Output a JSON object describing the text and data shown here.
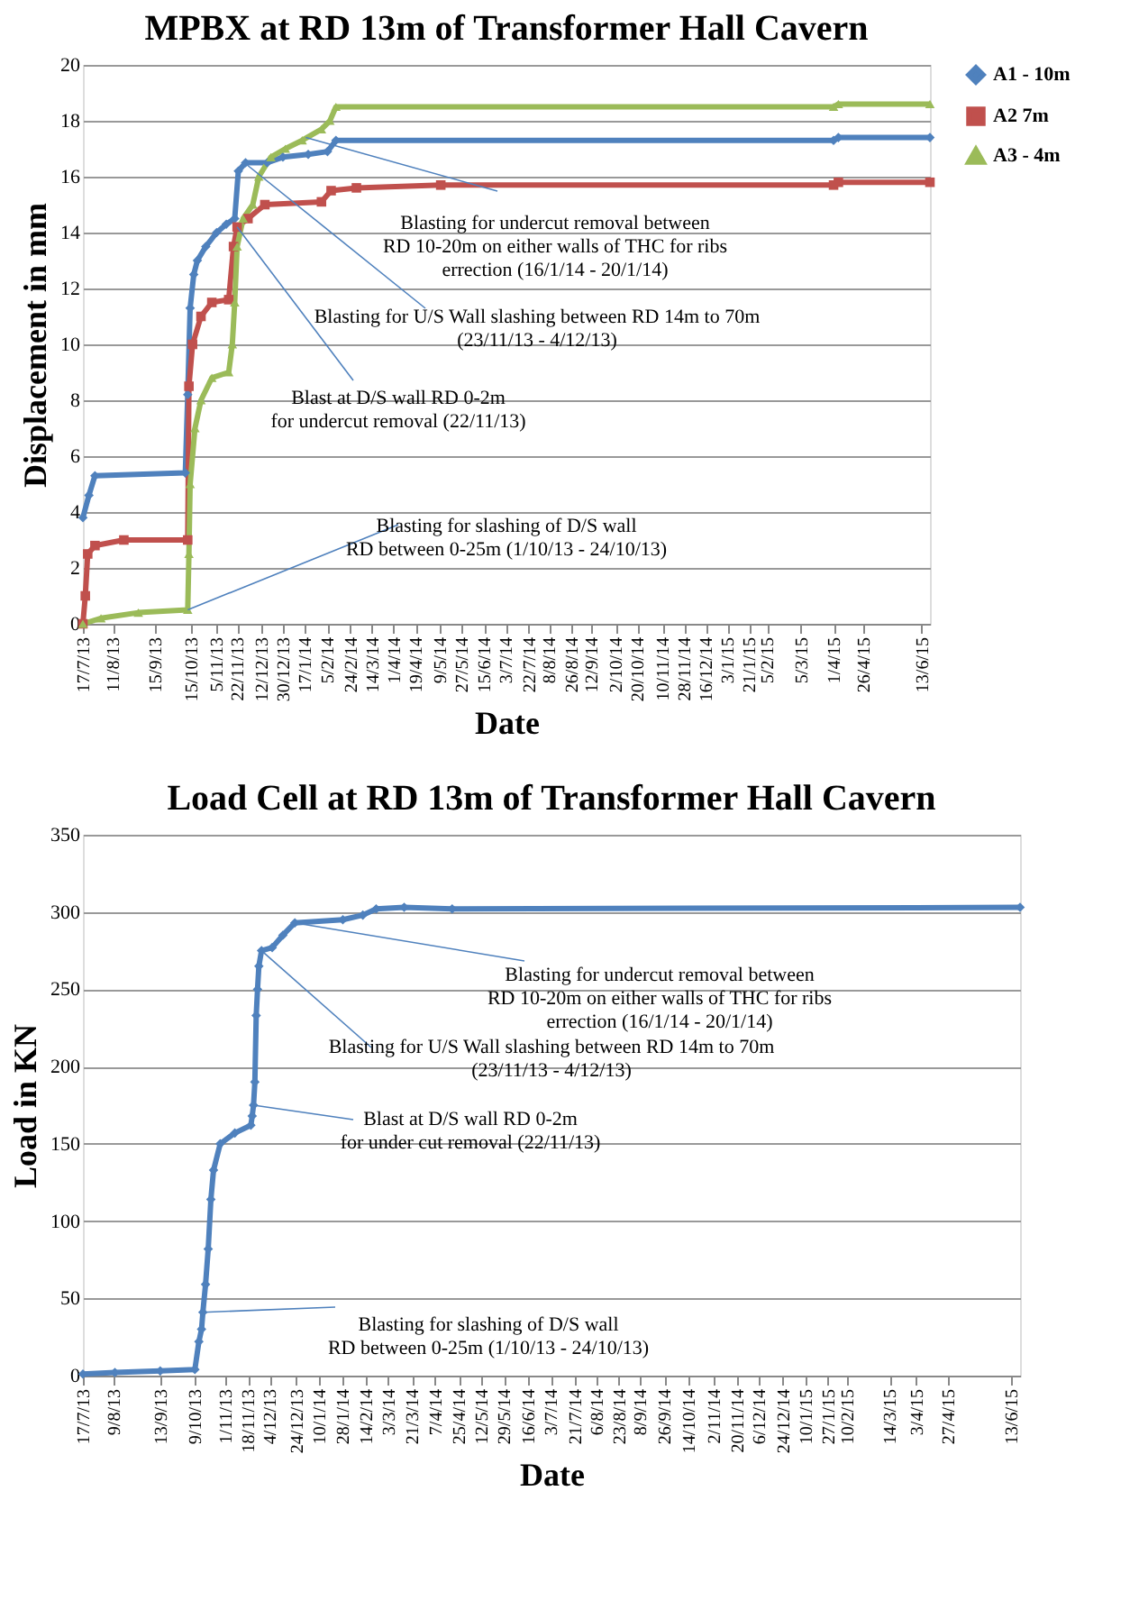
{
  "chart_data": [
    {
      "type": "line",
      "title": "MPBX at RD 13m  of Transformer Hall Cavern",
      "xlabel": "Date",
      "ylabel": "Displacement in mm",
      "xlim": [
        "2013-07-17",
        "2015-06-20"
      ],
      "ylim": [
        0,
        20
      ],
      "yticks": [
        0,
        2,
        4,
        6,
        8,
        10,
        12,
        14,
        16,
        18,
        20
      ],
      "xticks": [
        {
          "value": "2013-07-17",
          "label": "17/7/13"
        },
        {
          "value": "2013-08-11",
          "label": "11/8/13"
        },
        {
          "value": "2013-09-15",
          "label": "15/9/13"
        },
        {
          "value": "2013-10-15",
          "label": "15/10/13"
        },
        {
          "value": "2013-11-05",
          "label": "5/11/13"
        },
        {
          "value": "2013-11-22",
          "label": "22/11/13"
        },
        {
          "value": "2013-12-12",
          "label": "12/12/13"
        },
        {
          "value": "2013-12-30",
          "label": "30/12/13"
        },
        {
          "value": "2014-01-17",
          "label": "17/1/14"
        },
        {
          "value": "2014-02-05",
          "label": "5/2/14"
        },
        {
          "value": "2014-02-24",
          "label": "24/2/14"
        },
        {
          "value": "2014-03-14",
          "label": "14/3/14"
        },
        {
          "value": "2014-04-01",
          "label": "1/4/14"
        },
        {
          "value": "2014-04-19",
          "label": "19/4/14"
        },
        {
          "value": "2014-05-09",
          "label": "9/5/14"
        },
        {
          "value": "2014-05-27",
          "label": "27/5/14"
        },
        {
          "value": "2014-06-15",
          "label": "15/6/14"
        },
        {
          "value": "2014-07-03",
          "label": "3/7/14"
        },
        {
          "value": "2014-07-22",
          "label": "22/7/14"
        },
        {
          "value": "2014-08-08",
          "label": "8/8/14"
        },
        {
          "value": "2014-08-26",
          "label": "26/8/14"
        },
        {
          "value": "2014-09-12",
          "label": "12/9/14"
        },
        {
          "value": "2014-10-02",
          "label": "2/10/14"
        },
        {
          "value": "2014-10-20",
          "label": "20/10/14"
        },
        {
          "value": "2014-11-10",
          "label": "10/11/14"
        },
        {
          "value": "2014-11-28",
          "label": "28/11/14"
        },
        {
          "value": "2014-12-16",
          "label": "16/12/14"
        },
        {
          "value": "2015-01-03",
          "label": "3/1/15"
        },
        {
          "value": "2015-01-21",
          "label": "21/1/15"
        },
        {
          "value": "2015-02-05",
          "label": "5/2/15"
        },
        {
          "value": "2015-03-05",
          "label": "5/3/15"
        },
        {
          "value": "2015-04-01",
          "label": "1/4/15"
        },
        {
          "value": "2015-04-26",
          "label": "26/4/15"
        },
        {
          "value": "2015-06-13",
          "label": "13/6/15"
        }
      ],
      "grid": "y",
      "legend": "right",
      "line_style": "solid",
      "series": [
        {
          "name": "A1 - 10m",
          "color": "#4f81bd",
          "marker": "diamond",
          "x": [
            "2013-07-17",
            "2013-07-22",
            "2013-07-27",
            "2013-10-10",
            "2013-10-12",
            "2013-10-14",
            "2013-10-17",
            "2013-10-20",
            "2013-10-27",
            "2013-11-05",
            "2013-11-13",
            "2013-11-20",
            "2013-11-23",
            "2013-11-29",
            "2013-12-17",
            "2013-12-30",
            "2014-01-20",
            "2014-02-05",
            "2014-02-12",
            "2015-04-01",
            "2015-04-05",
            "2015-06-20"
          ],
          "values": [
            3.8,
            4.6,
            5.3,
            5.4,
            8.2,
            11.3,
            12.5,
            13.0,
            13.5,
            14.0,
            14.3,
            14.5,
            16.2,
            16.5,
            16.5,
            16.7,
            16.8,
            16.9,
            17.3,
            17.3,
            17.4,
            17.4
          ]
        },
        {
          "name": "A2   7m",
          "color": "#c0504d",
          "marker": "square",
          "x": [
            "2013-07-17",
            "2013-07-19",
            "2013-07-21",
            "2013-07-27",
            "2013-08-20",
            "2013-10-12",
            "2013-10-13",
            "2013-10-16",
            "2013-10-23",
            "2013-11-01",
            "2013-11-15",
            "2013-11-19",
            "2013-11-22",
            "2013-12-01",
            "2013-12-15",
            "2014-01-31",
            "2014-02-08",
            "2014-03-01",
            "2014-05-10",
            "2015-04-01",
            "2015-04-05",
            "2015-06-20"
          ],
          "values": [
            0,
            1.0,
            2.5,
            2.8,
            3.0,
            3.0,
            8.5,
            10.0,
            11.0,
            11.5,
            11.6,
            13.5,
            14.2,
            14.5,
            15.0,
            15.1,
            15.5,
            15.6,
            15.7,
            15.7,
            15.8,
            15.8
          ]
        },
        {
          "name": "A3 - 4m",
          "color": "#9bbb59",
          "marker": "triangle",
          "x": [
            "2013-07-17",
            "2013-08-01",
            "2013-09-01",
            "2013-10-12",
            "2013-10-13",
            "2013-10-14",
            "2013-10-18",
            "2013-10-23",
            "2013-11-01",
            "2013-11-15",
            "2013-11-18",
            "2013-11-20",
            "2013-11-22",
            "2013-11-27",
            "2013-12-05",
            "2013-12-10",
            "2013-12-20",
            "2014-01-01",
            "2014-01-15",
            "2014-01-31",
            "2014-02-07",
            "2014-02-12",
            "2015-04-01",
            "2015-04-05",
            "2015-06-20"
          ],
          "values": [
            0,
            0.2,
            0.4,
            0.5,
            2.5,
            5.0,
            7.0,
            8.0,
            8.8,
            9.0,
            10.0,
            11.5,
            13.5,
            14.5,
            15.0,
            16.0,
            16.7,
            17.0,
            17.3,
            17.7,
            18.0,
            18.5,
            18.5,
            18.6,
            18.6
          ]
        }
      ],
      "annotations": [
        {
          "text": "Blasting for undercut removal between\nRD 10-20m on either walls of THC for ribs\nerrection (16/1/14 - 20/1/14)",
          "x": "2014-01-18",
          "y": 17.4
        },
        {
          "text": "Blasting for  U/S Wall slashing between RD 14m to 70m\n(23/11/13 - 4/12/13)",
          "x": "2013-11-28",
          "y": 16.5
        },
        {
          "text": "Blast at D/S wall RD 0-2m\nfor undercut removal (22/11/13)",
          "x": "2013-11-22",
          "y": 14.2
        },
        {
          "text": "Blasting  for slashing of D/S wall\nRD between 0-25m (1/10/13 - 24/10/13)",
          "x": "2013-10-12",
          "y": 0.5
        }
      ]
    },
    {
      "type": "line",
      "title": "Load Cell at RD 13m  of Transformer Hall Cavern",
      "xlabel": "Date",
      "ylabel": "Load in KN",
      "xlim": [
        "2013-07-17",
        "2015-06-20"
      ],
      "ylim": [
        0,
        350
      ],
      "yticks": [
        0,
        50,
        100,
        150,
        200,
        250,
        300,
        350
      ],
      "xticks": [
        {
          "value": "2013-07-17",
          "label": "17/7/13"
        },
        {
          "value": "2013-08-09",
          "label": "9/8/13"
        },
        {
          "value": "2013-09-13",
          "label": "13/9/13"
        },
        {
          "value": "2013-10-09",
          "label": "9/10/13"
        },
        {
          "value": "2013-11-01",
          "label": "1/11/13"
        },
        {
          "value": "2013-11-18",
          "label": "18/11/13"
        },
        {
          "value": "2013-12-04",
          "label": "4/12/13"
        },
        {
          "value": "2013-12-24",
          "label": "24/12/13"
        },
        {
          "value": "2014-01-10",
          "label": "10/1/14"
        },
        {
          "value": "2014-01-28",
          "label": "28/1/14"
        },
        {
          "value": "2014-02-14",
          "label": "14/2/14"
        },
        {
          "value": "2014-03-03",
          "label": "3/3/14"
        },
        {
          "value": "2014-03-21",
          "label": "21/3/14"
        },
        {
          "value": "2014-04-07",
          "label": "7/4/14"
        },
        {
          "value": "2014-04-25",
          "label": "25/4/14"
        },
        {
          "value": "2014-05-12",
          "label": "12/5/14"
        },
        {
          "value": "2014-05-29",
          "label": "29/5/14"
        },
        {
          "value": "2014-06-16",
          "label": "16/6/14"
        },
        {
          "value": "2014-07-03",
          "label": "3/7/14"
        },
        {
          "value": "2014-07-21",
          "label": "21/7/14"
        },
        {
          "value": "2014-08-06",
          "label": "6/8/14"
        },
        {
          "value": "2014-08-23",
          "label": "23/8/14"
        },
        {
          "value": "2014-09-08",
          "label": "8/9/14"
        },
        {
          "value": "2014-09-26",
          "label": "26/9/14"
        },
        {
          "value": "2014-10-14",
          "label": "14/10/14"
        },
        {
          "value": "2014-11-02",
          "label": "2/11/14"
        },
        {
          "value": "2014-11-20",
          "label": "20/11/14"
        },
        {
          "value": "2014-12-06",
          "label": "6/12/14"
        },
        {
          "value": "2014-12-24",
          "label": "24/12/14"
        },
        {
          "value": "2015-01-10",
          "label": "10/1/15"
        },
        {
          "value": "2015-01-27",
          "label": "27/1/15"
        },
        {
          "value": "2015-02-10",
          "label": "10/2/15"
        },
        {
          "value": "2015-03-14",
          "label": "14/3/15"
        },
        {
          "value": "2015-04-03",
          "label": "3/4/15"
        },
        {
          "value": "2015-04-27",
          "label": "27/4/15"
        },
        {
          "value": "2015-06-13",
          "label": "13/6/15"
        }
      ],
      "grid": "y",
      "line_style": "solid",
      "series": [
        {
          "color": "#4f81bd",
          "marker": "diamond",
          "x": [
            "2013-07-17",
            "2013-08-10",
            "2013-09-13",
            "2013-10-09",
            "2013-10-12",
            "2013-10-14",
            "2013-10-15",
            "2013-10-17",
            "2013-10-19",
            "2013-10-21",
            "2013-10-23",
            "2013-10-28",
            "2013-11-08",
            "2013-11-20",
            "2013-11-21",
            "2013-11-22",
            "2013-11-23",
            "2013-11-24",
            "2013-11-25",
            "2013-11-26",
            "2013-11-28",
            "2013-12-06",
            "2013-12-14",
            "2013-12-23",
            "2014-01-28",
            "2014-02-12",
            "2014-02-22",
            "2014-03-15",
            "2014-04-20",
            "2015-06-20"
          ],
          "values": [
            1,
            2,
            3,
            4,
            22,
            30,
            41,
            59,
            82,
            114,
            133,
            150,
            157,
            162,
            168,
            175,
            190,
            233,
            250,
            265,
            275,
            277,
            285,
            293,
            295,
            298,
            302,
            303,
            302,
            303
          ]
        }
      ],
      "annotations": [
        {
          "text": "Blasting for undercut removal between\nRD 10-20m on either walls of THC for ribs\nerrection (16/1/14 - 20/1/14)",
          "x": "2013-12-23",
          "y": 293
        },
        {
          "text": "Blasting for  U/S Wall slashing between RD 14m to 70m\n(23/11/13 - 4/12/13)",
          "x": "2013-11-28",
          "y": 275
        },
        {
          "text": "Blast at D/S wall RD 0-2m\nfor under cut removal (22/11/13)",
          "x": "2013-11-22",
          "y": 175
        },
        {
          "text": "Blasting  for slashing of D/S wall\nRD between 0-25m (1/10/13 - 24/10/13)",
          "x": "2013-10-15",
          "y": 41
        }
      ]
    }
  ]
}
